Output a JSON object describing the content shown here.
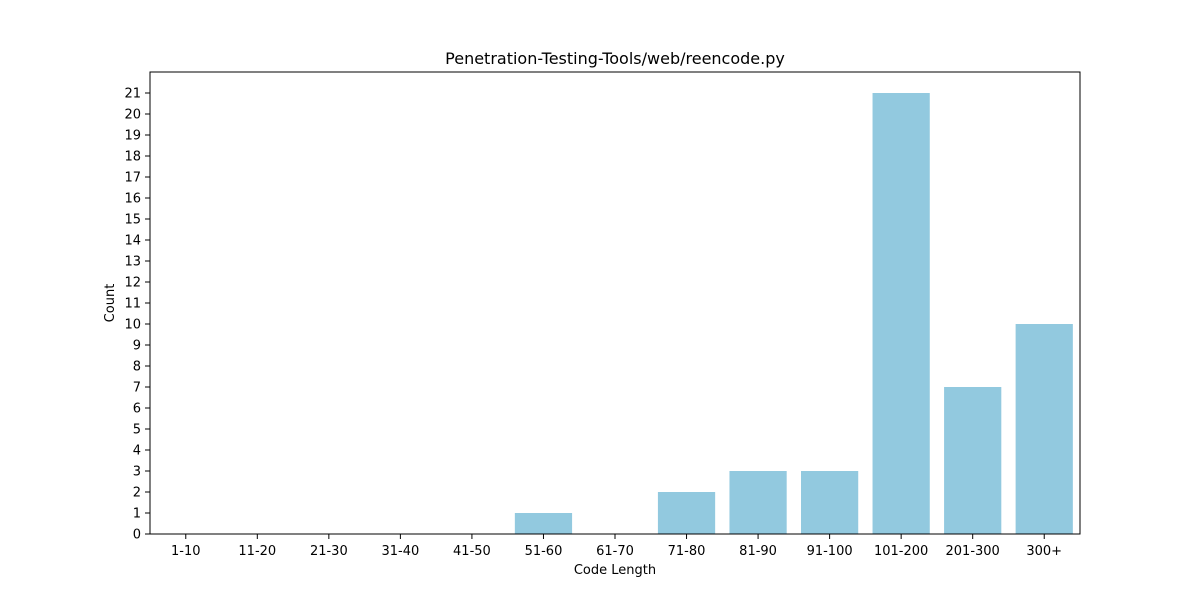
{
  "chart_data": {
    "type": "bar",
    "title": "Penetration-Testing-Tools/web/reencode.py",
    "xlabel": "Code Length",
    "ylabel": "Count",
    "categories": [
      "1-10",
      "11-20",
      "21-30",
      "31-40",
      "41-50",
      "51-60",
      "61-70",
      "71-80",
      "81-90",
      "91-100",
      "101-200",
      "201-300",
      "300+"
    ],
    "values": [
      0,
      0,
      0,
      0,
      0,
      1,
      0,
      2,
      3,
      3,
      21,
      7,
      10
    ],
    "ylim": [
      0,
      22
    ],
    "yticks": [
      0,
      1,
      2,
      3,
      4,
      5,
      6,
      7,
      8,
      9,
      10,
      11,
      12,
      13,
      14,
      15,
      16,
      17,
      18,
      19,
      20,
      21
    ],
    "bar_color": "#92c9df",
    "grid": false,
    "legend": "none"
  }
}
